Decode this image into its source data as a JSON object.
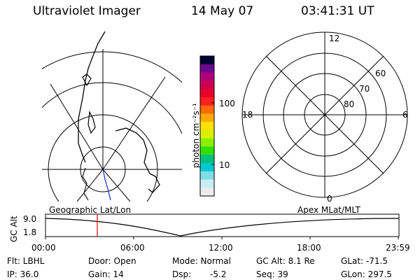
{
  "header": {
    "instrument": "Ultraviolet Imager",
    "date": "14 May 07",
    "time": "03:41:31 UT"
  },
  "colorbar": {
    "unit_label": "photon cm⁻²s⁻¹",
    "tick_100": "100",
    "tick_10": "10",
    "colors": [
      "#000033",
      "#6a0a8a",
      "#b0007a",
      "#d00050",
      "#e8002a",
      "#ff2020",
      "#ff6a00",
      "#ffaa00",
      "#ffe000",
      "#d8f000",
      "#8af000",
      "#30e000",
      "#00c080",
      "#00c8d0",
      "#80dce8",
      "#c8eef4",
      "#ececec"
    ]
  },
  "polar_plot": {
    "label_12": "12",
    "label_18": "18",
    "label_6": "6",
    "label_0": "0",
    "label_60": "60",
    "label_70": "70",
    "label_80": "80"
  },
  "timeline": {
    "left_label": "Geographic Lat/Lon",
    "right_label": "Apex MLat/MLT",
    "ylabel": "GC Alt",
    "y_top": "9.0",
    "y_bottom": "1.8",
    "x_ticks": [
      "00:00",
      "06:00",
      "12:00",
      "18:00",
      "23:59"
    ],
    "marker_color": "#e00000"
  },
  "status": {
    "flt": "Flt: LBHL",
    "ip": "IP: 36.0",
    "door": "Door: Open",
    "gain": "Gain: 14",
    "mode": "Mode: Normal",
    "dsp": "Dsp:",
    "dsp_value": "-5.2",
    "gc_alt": "GC Alt: 8.1 Re",
    "seq": "Seq: 39",
    "glat": "GLat: -71.5",
    "glon": "GLon: 297.5"
  }
}
